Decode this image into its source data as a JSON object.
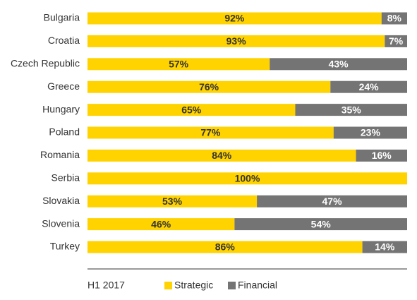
{
  "chart_data": {
    "type": "bar",
    "orientation": "horizontal",
    "stacked": true,
    "categories": [
      "Bulgaria",
      "Croatia",
      "Czech Republic",
      "Greece",
      "Hungary",
      "Poland",
      "Romania",
      "Serbia",
      "Slovakia",
      "Slovenia",
      "Turkey"
    ],
    "series": [
      {
        "name": "Strategic",
        "values": [
          92,
          93,
          57,
          76,
          65,
          77,
          84,
          100,
          53,
          46,
          86
        ],
        "color": "#FFD300"
      },
      {
        "name": "Financial",
        "values": [
          8,
          7,
          43,
          24,
          35,
          23,
          16,
          0,
          47,
          54,
          14
        ],
        "color": "#747474"
      }
    ],
    "value_suffix": "%",
    "xlim": [
      0,
      100
    ],
    "grid": false,
    "legend_position": "bottom",
    "period_label": "H1 2017"
  }
}
